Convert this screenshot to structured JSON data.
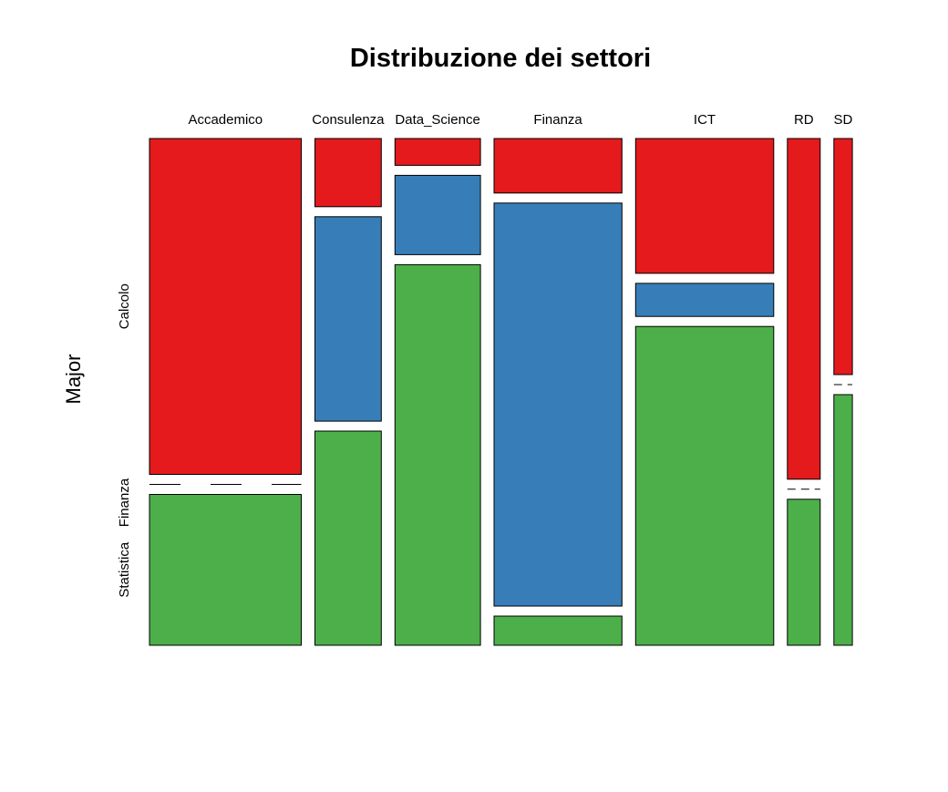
{
  "chart_data": {
    "type": "mosaic",
    "title": "Distribuzione dei settori",
    "xlabel": "",
    "ylabel": "Major",
    "categories": [
      "Accademico",
      "Consulenza",
      "Data_Science",
      "Finanza",
      "ICT",
      "RD",
      "SD"
    ],
    "column_shares": [
      0.222,
      0.097,
      0.125,
      0.187,
      0.202,
      0.048,
      0.027
    ],
    "series": [
      {
        "name": "Calcolo",
        "color": "#E41A1C",
        "values": [
          0.69,
          0.14,
          0.055,
          0.112,
          0.277,
          0.7,
          0.485
        ]
      },
      {
        "name": "Finanza",
        "color": "#377EB8",
        "values": [
          0.0,
          0.42,
          0.163,
          0.828,
          0.068,
          0.0,
          0.0
        ]
      },
      {
        "name": "Statistica",
        "color": "#4DAF4A",
        "values": [
          0.31,
          0.44,
          0.782,
          0.06,
          0.655,
          0.3,
          0.515
        ]
      }
    ],
    "row_labels": [
      "Calcolo",
      "Finanza",
      "Statistica"
    ],
    "legend": "none",
    "grid": false
  }
}
